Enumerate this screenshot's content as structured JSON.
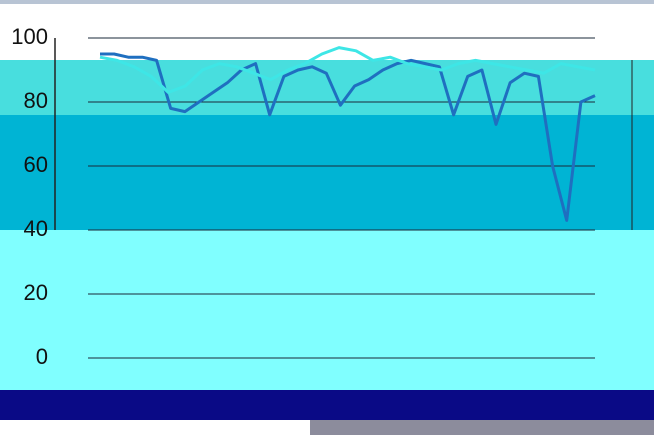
{
  "chart_data": {
    "type": "line",
    "ylim": [
      0,
      100
    ],
    "yticks": [
      0,
      20,
      40,
      60,
      80,
      100
    ],
    "grid": true,
    "series": [
      {
        "color": "#1f6fc0",
        "values": [
          95,
          95,
          94,
          94,
          93,
          78,
          77,
          80,
          83,
          86,
          90,
          92,
          76,
          88,
          90,
          91,
          89,
          79,
          85,
          87,
          90,
          92,
          93,
          92,
          91,
          76,
          88,
          90,
          73,
          86,
          89,
          88,
          60,
          43,
          80,
          82
        ]
      },
      {
        "color": "#3ee6e6",
        "values": [
          94,
          93,
          91,
          88,
          83,
          85,
          90,
          92,
          91,
          89,
          87,
          90,
          92,
          95,
          97,
          96,
          93,
          94,
          92,
          91,
          90,
          92,
          93,
          92,
          91,
          90,
          89,
          92,
          91,
          90
        ]
      }
    ]
  }
}
